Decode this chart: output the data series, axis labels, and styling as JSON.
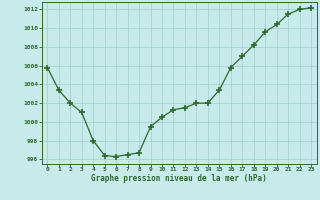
{
  "x": [
    0,
    1,
    2,
    3,
    4,
    5,
    6,
    7,
    8,
    9,
    10,
    11,
    12,
    13,
    14,
    15,
    16,
    17,
    18,
    19,
    20,
    21,
    22,
    23
  ],
  "y": [
    1005.8,
    1003.4,
    1002.0,
    1001.0,
    998.0,
    996.4,
    996.3,
    996.5,
    996.7,
    999.5,
    1000.5,
    1001.3,
    1001.5,
    1002.0,
    1002.0,
    1003.4,
    1005.8,
    1007.0,
    1008.2,
    1009.6,
    1010.4,
    1011.5,
    1012.0,
    1012.2
  ],
  "line_color": "#2d6a2d",
  "marker": "P",
  "marker_size": 3,
  "bg_color": "#c8eaea",
  "grid_color": "#a0cccc",
  "xlabel": "Graphe pression niveau de la mer (hPa)",
  "xlabel_color": "#2d6a2d",
  "tick_color": "#2d6a2d",
  "ylim": [
    995.5,
    1012.8
  ],
  "yticks": [
    996,
    998,
    1000,
    1002,
    1004,
    1006,
    1008,
    1010,
    1012
  ],
  "xlim": [
    -0.5,
    23.5
  ],
  "xticks": [
    0,
    1,
    2,
    3,
    4,
    5,
    6,
    7,
    8,
    9,
    10,
    11,
    12,
    13,
    14,
    15,
    16,
    17,
    18,
    19,
    20,
    21,
    22,
    23
  ]
}
